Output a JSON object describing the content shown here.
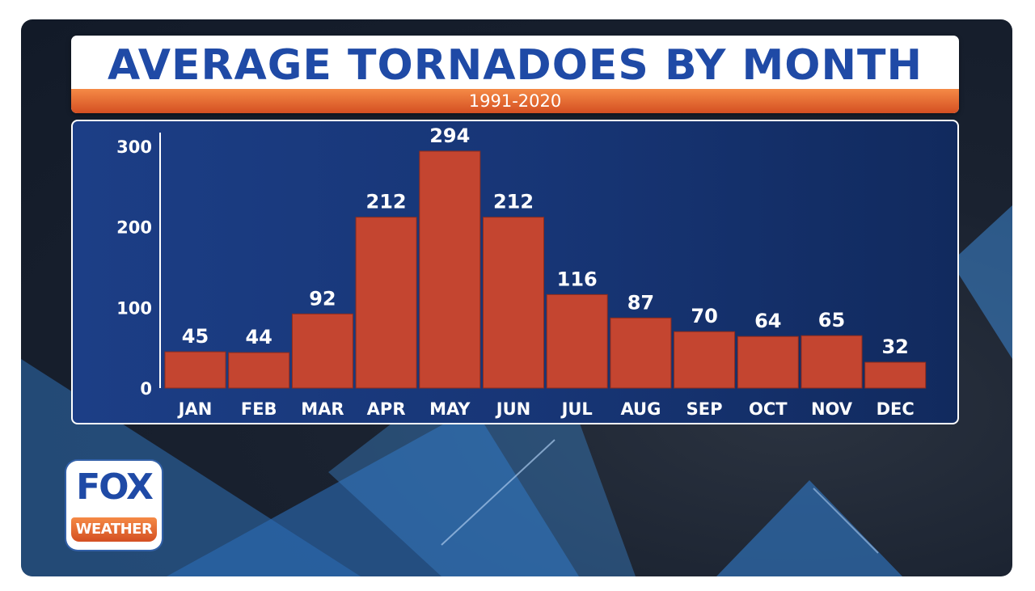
{
  "title": "AVERAGE TORNADOES BY MONTH",
  "subtitle": "1991-2020",
  "logo": {
    "line1": "FOX",
    "line2": "WEATHER"
  },
  "colors": {
    "bar": "#c44530",
    "title": "#1f4aa6",
    "accent": "#e86a33",
    "panel": "#173575"
  },
  "chart_data": {
    "type": "bar",
    "title": "AVERAGE TORNADOES BY MONTH",
    "subtitle": "1991-2020",
    "categories": [
      "JAN",
      "FEB",
      "MAR",
      "APR",
      "MAY",
      "JUN",
      "JUL",
      "AUG",
      "SEP",
      "OCT",
      "NOV",
      "DEC"
    ],
    "values": [
      45,
      44,
      92,
      212,
      294,
      212,
      116,
      87,
      70,
      64,
      65,
      32
    ],
    "ylim": [
      0,
      300
    ],
    "yticks": [
      0,
      100,
      200,
      300
    ],
    "xlabel": "",
    "ylabel": "",
    "grid": false,
    "data_labels": true
  }
}
